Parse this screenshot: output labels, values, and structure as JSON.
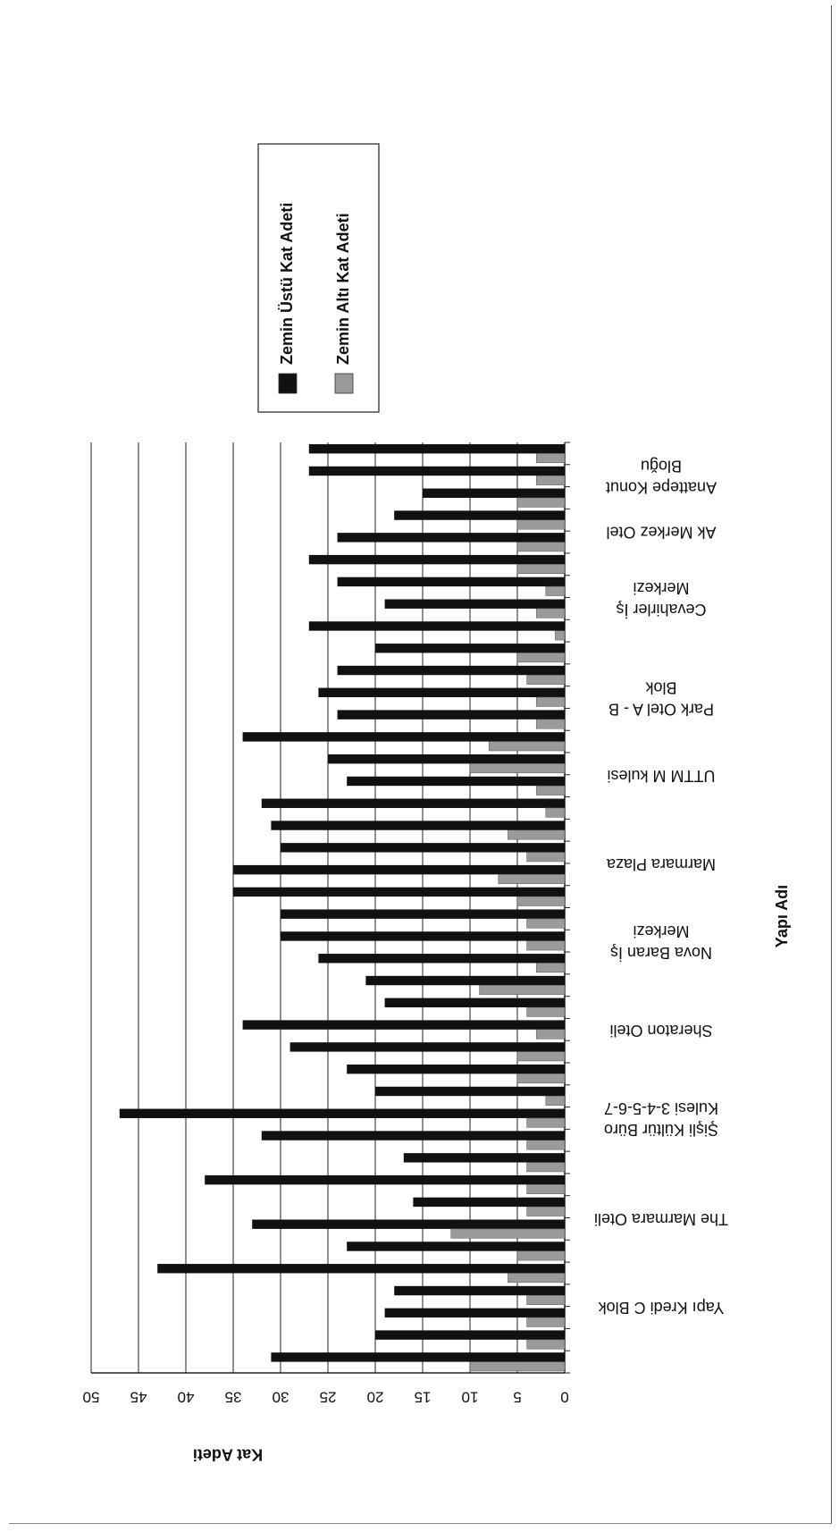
{
  "chart_data": {
    "type": "bar",
    "orientation": "rotated-180",
    "ylabel": "Kat Adeti",
    "xlabel": "Yapı Adı",
    "ylim": [
      0,
      50
    ],
    "yticks": [
      "0",
      "5",
      "10",
      "15",
      "20",
      "25",
      "30",
      "35",
      "40",
      "45",
      "50"
    ],
    "grid": true,
    "legend_position": "right",
    "colors": {
      "above": "#111111",
      "below": "#9a9a9a"
    },
    "category_labels": [
      {
        "lines": [
          "Anattepe Konut",
          "Bloğu"
        ],
        "slot": 1.5
      },
      {
        "lines": [
          "Ak Merkez Otel"
        ],
        "slot": 4.0
      },
      {
        "lines": [
          "Cevahirler İş",
          "Merkezi"
        ],
        "slot": 7.0
      },
      {
        "lines": [
          "Park Otel A - B",
          "Blok"
        ],
        "slot": 11.5
      },
      {
        "lines": [
          "UTTM M kulesi"
        ],
        "slot": 15.0
      },
      {
        "lines": [
          "Marmara Plaza"
        ],
        "slot": 19.0
      },
      {
        "lines": [
          "Nova Baran İş",
          "Merkezi"
        ],
        "slot": 22.5
      },
      {
        "lines": [
          "Sheraton Oteli"
        ],
        "slot": 26.5
      },
      {
        "lines": [
          "Şişli Kültür  Büro",
          "Kulesi 3-4-5-6-7"
        ],
        "slot": 30.5
      },
      {
        "lines": [
          "The Marmara Oteli"
        ],
        "slot": 35.0
      },
      {
        "lines": [
          "Yapı Kredi C Blok"
        ],
        "slot": 39.0
      }
    ],
    "series": [
      {
        "name": "Zemin Üstü Kat Adeti",
        "values": [
          27,
          27,
          15,
          18,
          24,
          27,
          24,
          19,
          27,
          20,
          24,
          26,
          24,
          34,
          25,
          23,
          32,
          31,
          30,
          35,
          35,
          30,
          30,
          26,
          21,
          19,
          34,
          29,
          23,
          20,
          47,
          32,
          17,
          38,
          16,
          33,
          23,
          43,
          18,
          19,
          20,
          31
        ]
      },
      {
        "name": "Zemin Altı Kat Adeti",
        "values": [
          3,
          3,
          5,
          5,
          5,
          5,
          2,
          3,
          1,
          5,
          4,
          3,
          3,
          8,
          10,
          3,
          2,
          6,
          4,
          7,
          5,
          4,
          4,
          3,
          9,
          4,
          3,
          5,
          5,
          2,
          4,
          4,
          4,
          4,
          4,
          12,
          5,
          6,
          4,
          4,
          4,
          10
        ]
      }
    ]
  }
}
